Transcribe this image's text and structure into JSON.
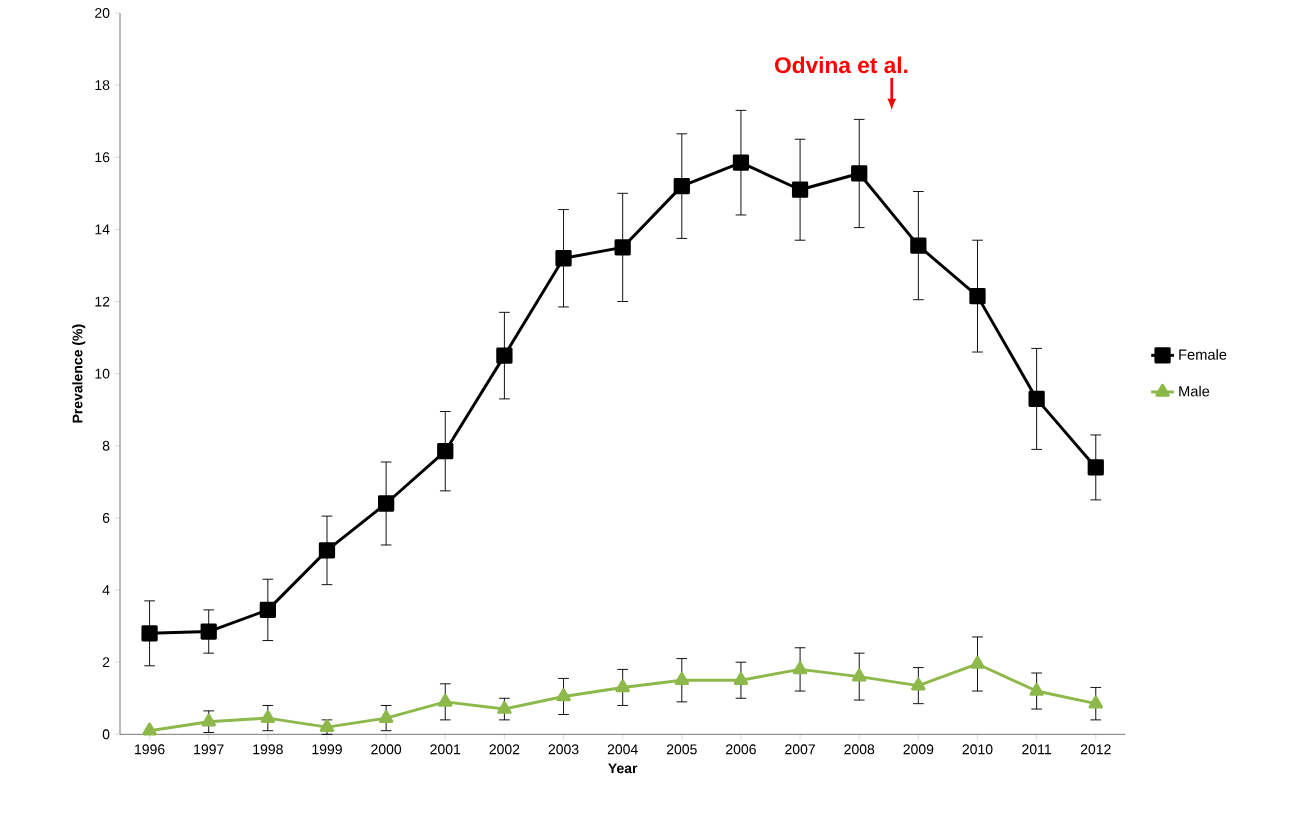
{
  "chart_data": {
    "type": "line",
    "xlabel": "Year",
    "ylabel": "Prevalence (%)",
    "categories": [
      "1996",
      "1997",
      "1998",
      "1999",
      "2000",
      "2001",
      "2002",
      "2003",
      "2004",
      "2005",
      "2006",
      "2007",
      "2008",
      "2009",
      "2010",
      "2011",
      "2012"
    ],
    "series": [
      {
        "name": "Female",
        "color": "#000000",
        "marker": "square",
        "values": [
          2.8,
          2.85,
          3.45,
          5.1,
          6.4,
          7.85,
          10.5,
          13.2,
          13.5,
          15.2,
          15.85,
          15.1,
          15.55,
          13.55,
          12.15,
          9.3,
          7.4
        ],
        "errors": [
          0.9,
          0.6,
          0.85,
          0.95,
          1.15,
          1.1,
          1.2,
          1.35,
          1.5,
          1.45,
          1.45,
          1.4,
          1.5,
          1.5,
          1.55,
          1.4,
          0.9
        ]
      },
      {
        "name": "Male",
        "color": "#8db84a",
        "marker": "triangle",
        "values": [
          0.1,
          0.35,
          0.45,
          0.2,
          0.45,
          0.9,
          0.7,
          1.05,
          1.3,
          1.5,
          1.5,
          1.8,
          1.6,
          1.35,
          1.95,
          1.2,
          0.85
        ],
        "errors": [
          null,
          0.3,
          0.35,
          0.2,
          0.35,
          0.5,
          0.3,
          0.5,
          0.5,
          0.6,
          0.5,
          0.6,
          0.65,
          0.5,
          0.75,
          0.5,
          0.45
        ]
      }
    ],
    "ylim": [
      0,
      20
    ],
    "yticks": [
      0,
      2,
      4,
      6,
      8,
      10,
      12,
      14,
      16,
      18,
      20
    ],
    "legend": "right",
    "grid": false,
    "annotations": [
      "Odvina et al."
    ]
  }
}
